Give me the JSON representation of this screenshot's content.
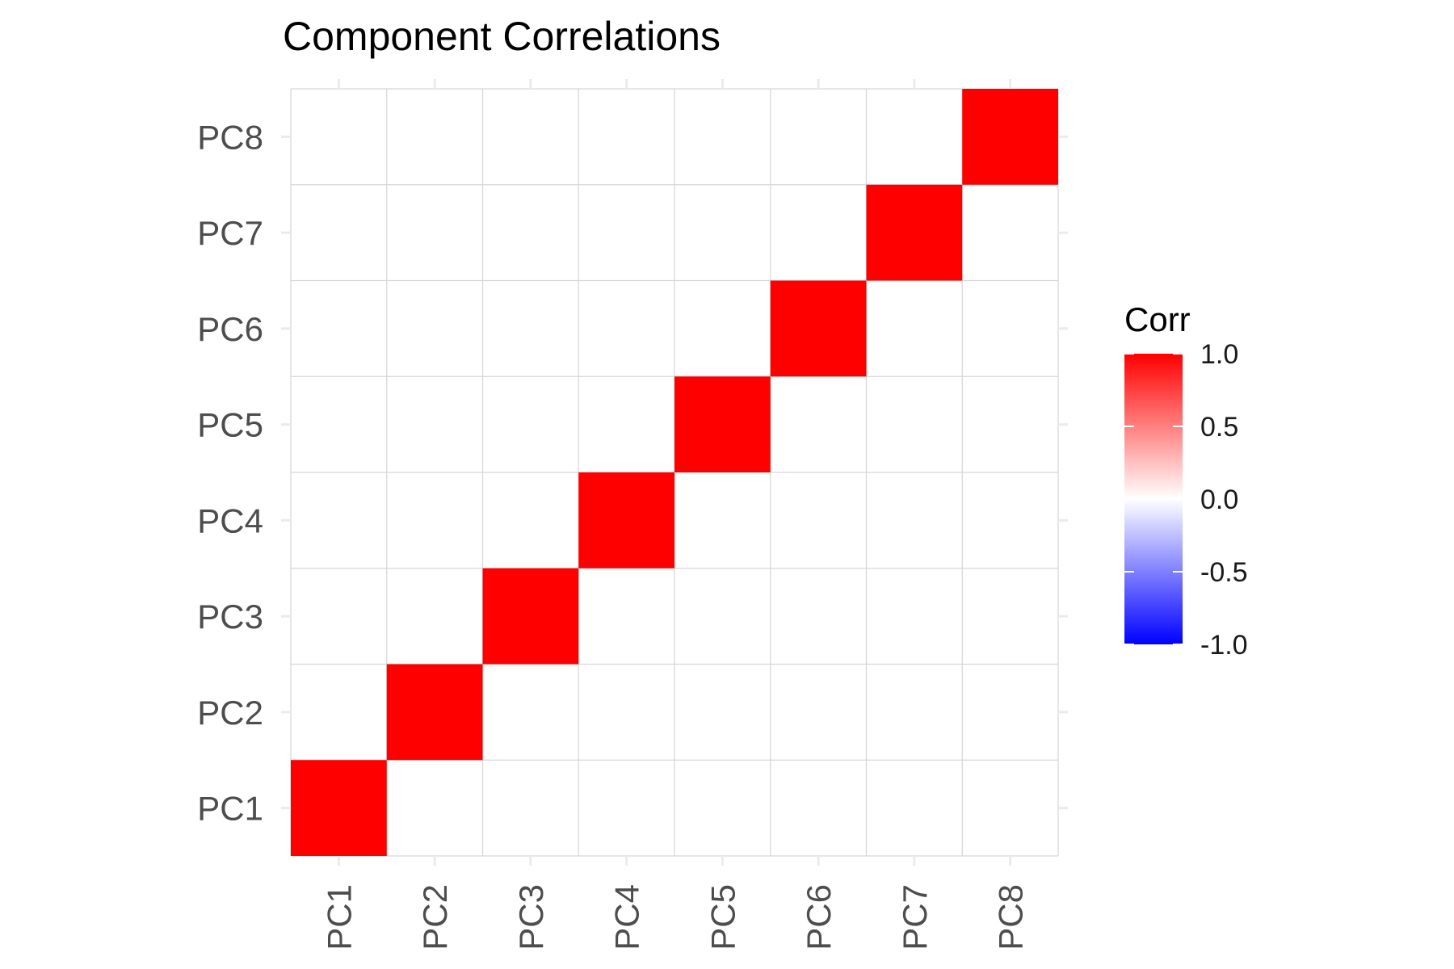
{
  "chart_data": {
    "type": "heatmap",
    "title": "Component Correlations",
    "xlabel": "",
    "ylabel": "",
    "x_categories": [
      "PC1",
      "PC2",
      "PC3",
      "PC4",
      "PC5",
      "PC6",
      "PC7",
      "PC8"
    ],
    "y_categories": [
      "PC1",
      "PC2",
      "PC3",
      "PC4",
      "PC5",
      "PC6",
      "PC7",
      "PC8"
    ],
    "values": [
      [
        1,
        0,
        0,
        0,
        0,
        0,
        0,
        0
      ],
      [
        0,
        1,
        0,
        0,
        0,
        0,
        0,
        0
      ],
      [
        0,
        0,
        1,
        0,
        0,
        0,
        0,
        0
      ],
      [
        0,
        0,
        0,
        1,
        0,
        0,
        0,
        0
      ],
      [
        0,
        0,
        0,
        0,
        1,
        0,
        0,
        0
      ],
      [
        0,
        0,
        0,
        0,
        0,
        1,
        0,
        0
      ],
      [
        0,
        0,
        0,
        0,
        0,
        0,
        1,
        0
      ],
      [
        0,
        0,
        0,
        0,
        0,
        0,
        0,
        1
      ]
    ],
    "grid": true,
    "legend": {
      "title": "Corr",
      "placement": "right",
      "range": [
        -1,
        1
      ],
      "ticks": [
        1.0,
        0.5,
        0.0,
        -0.5,
        -1.0
      ],
      "tick_labels": [
        "1.0",
        "0.5",
        "0.0",
        "-0.5",
        "-1.0"
      ],
      "low_color": "#0000ff",
      "mid_color": "#ffffff",
      "high_color": "#ff0000"
    }
  }
}
